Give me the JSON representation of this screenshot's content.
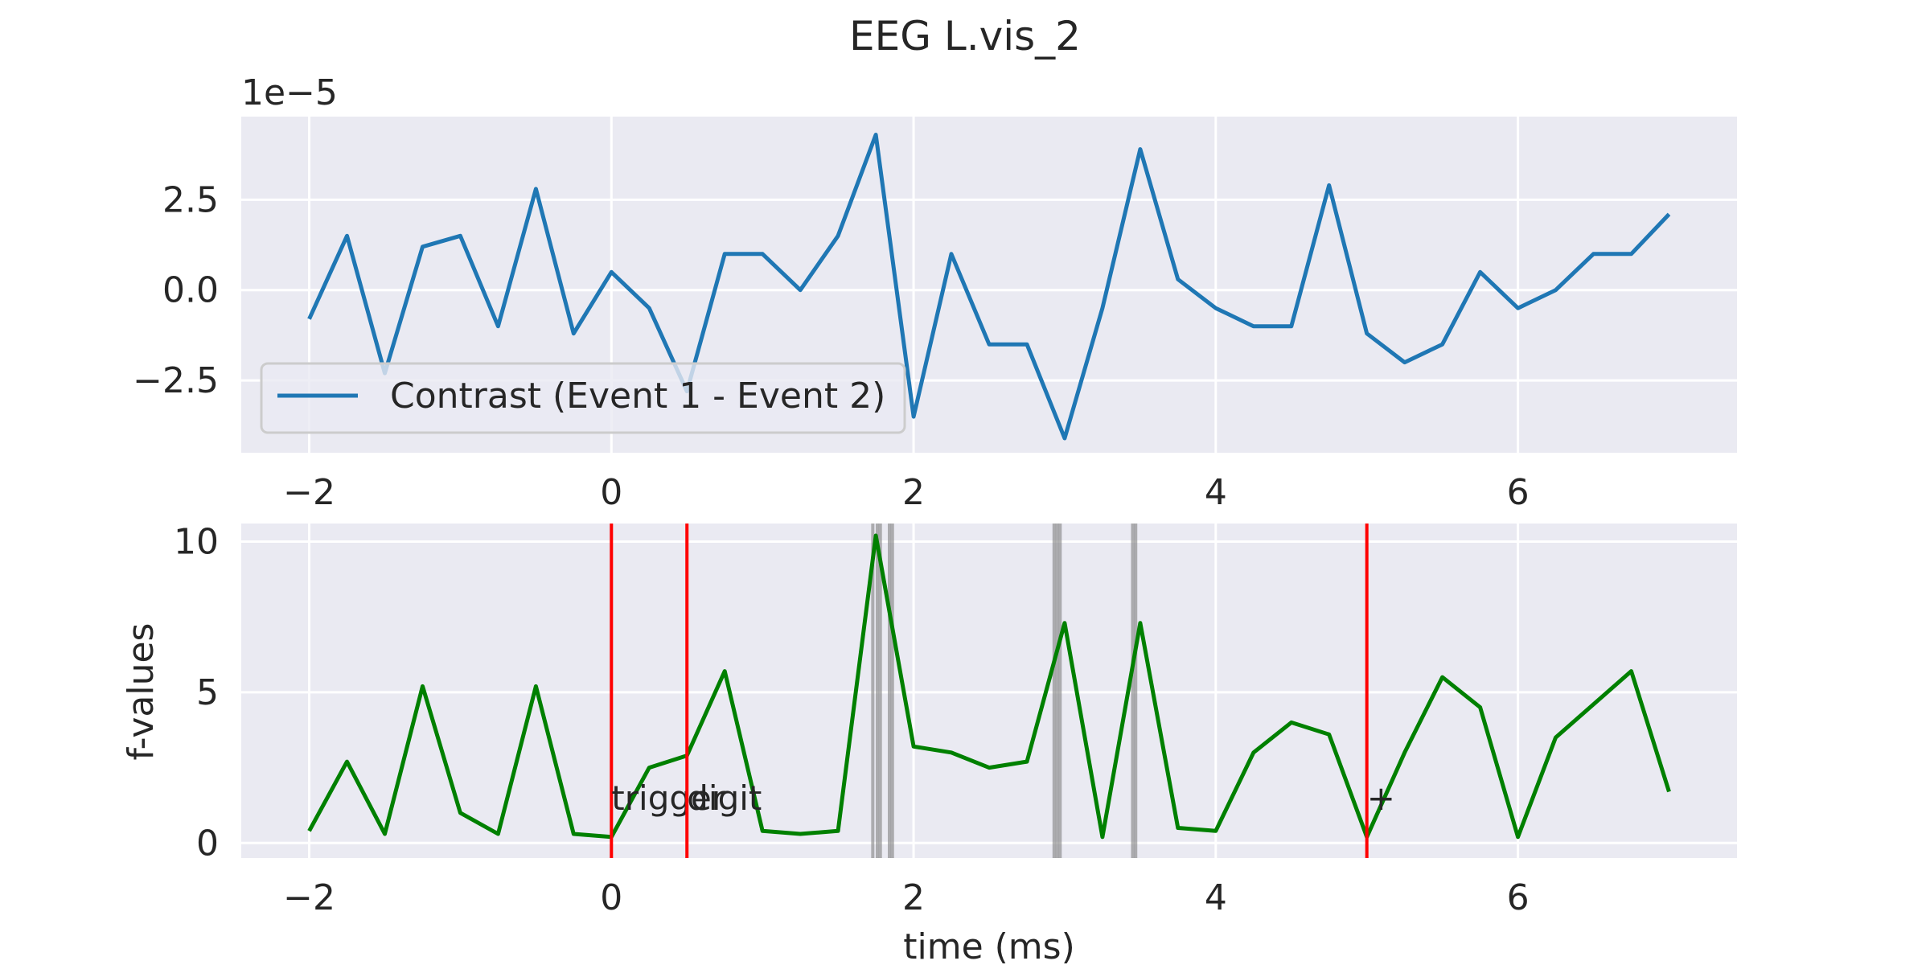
{
  "figure": {
    "title": "EEG L.vis_2"
  },
  "chart_data": [
    {
      "type": "line",
      "x_range": [
        -2,
        7
      ],
      "xlim": [
        -2.45,
        7.45
      ],
      "ylim": [
        -4.5,
        4.8
      ],
      "y_scale_label": "1e−5",
      "y_ticks": [
        -2.5,
        0.0,
        2.5
      ],
      "y_tick_labels": [
        "−2.5",
        "0.0",
        "2.5"
      ],
      "x_ticks": [
        -2,
        0,
        2,
        4,
        6
      ],
      "x_tick_labels": [
        "−2",
        "0",
        "2",
        "4",
        "6"
      ],
      "grid": true,
      "legend_position": "lower-left",
      "series": [
        {
          "name": "Contrast (Event 1 - Event 2)",
          "color": "#1f77b4",
          "x": [
            -2.0,
            -1.75,
            -1.5,
            -1.25,
            -1.0,
            -0.75,
            -0.5,
            -0.25,
            0.0,
            0.25,
            0.5,
            0.75,
            1.0,
            1.25,
            1.5,
            1.75,
            2.0,
            2.25,
            2.5,
            2.75,
            3.0,
            3.25,
            3.5,
            3.75,
            4.0,
            4.25,
            4.5,
            4.75,
            5.0,
            5.25,
            5.5,
            5.75,
            6.0,
            6.25,
            6.5,
            6.75,
            7.0
          ],
          "y": [
            -0.8,
            1.5,
            -2.3,
            1.2,
            1.5,
            -1.0,
            2.8,
            -1.2,
            0.5,
            -0.5,
            -2.8,
            1.0,
            1.0,
            0.0,
            1.5,
            4.3,
            -3.5,
            1.0,
            -1.5,
            -1.5,
            -4.1,
            -0.5,
            3.9,
            0.3,
            -0.5,
            -1.0,
            -1.0,
            2.9,
            -1.2,
            -2.0,
            -1.5,
            0.5,
            -0.5,
            0.0,
            1.0,
            1.0,
            2.1
          ]
        }
      ]
    },
    {
      "type": "line",
      "ylabel": "f-values",
      "xlabel": "time (ms)",
      "x_range": [
        -2,
        7
      ],
      "xlim": [
        -2.45,
        7.45
      ],
      "ylim": [
        -0.5,
        10.6
      ],
      "y_ticks": [
        0,
        5,
        10
      ],
      "y_tick_labels": [
        "0",
        "5",
        "10"
      ],
      "x_ticks": [
        -2,
        0,
        2,
        4,
        6
      ],
      "x_tick_labels": [
        "−2",
        "0",
        "2",
        "4",
        "6"
      ],
      "grid": true,
      "series": [
        {
          "name": "",
          "color": "#008000",
          "x": [
            -2.0,
            -1.75,
            -1.5,
            -1.25,
            -1.0,
            -0.75,
            -0.5,
            -0.25,
            0.0,
            0.25,
            0.5,
            0.75,
            1.0,
            1.25,
            1.5,
            1.75,
            2.0,
            2.25,
            2.5,
            2.75,
            3.0,
            3.25,
            3.5,
            3.75,
            4.0,
            4.25,
            4.5,
            4.75,
            5.0,
            5.25,
            5.5,
            5.75,
            6.0,
            6.25,
            6.5,
            6.75,
            7.0
          ],
          "y": [
            0.4,
            2.7,
            0.3,
            5.2,
            1.0,
            0.3,
            5.2,
            0.3,
            0.2,
            2.5,
            2.9,
            5.7,
            0.4,
            0.3,
            0.4,
            10.2,
            3.2,
            3.0,
            2.5,
            2.7,
            7.3,
            0.2,
            7.3,
            0.5,
            0.4,
            3.0,
            4.0,
            3.6,
            0.2,
            3.0,
            5.5,
            4.5,
            0.2,
            3.5,
            4.6,
            5.7,
            1.7
          ]
        }
      ],
      "event_lines": [
        {
          "x": 0.0,
          "color": "#ff0000",
          "label": "trigger"
        },
        {
          "x": 0.5,
          "color": "#ff0000",
          "label": "digit"
        },
        {
          "x": 5.0,
          "color": "#ff0000",
          "label": "+"
        }
      ],
      "significant_times": [
        1.73,
        1.76,
        1.78,
        1.84,
        1.86,
        2.93,
        2.95,
        2.97,
        3.45,
        3.47
      ]
    }
  ]
}
